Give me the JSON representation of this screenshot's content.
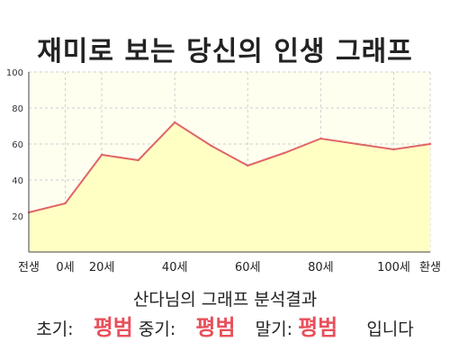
{
  "chart_data": {
    "type": "area",
    "title": "재미로 보는 당신의 인생 그래프",
    "ylim": [
      0,
      100
    ],
    "y_ticks": [
      20,
      40,
      60,
      80,
      100
    ],
    "grid": true,
    "x_tick_labels": [
      "전생",
      "0세",
      "20세",
      "40세",
      "60세",
      "80세",
      "100세",
      "환생"
    ],
    "x": [
      "전생",
      "0세",
      "20세",
      "30세",
      "40세",
      "50세",
      "60세",
      "70세",
      "80세",
      "90세",
      "100세",
      "환생"
    ],
    "values": [
      22,
      27,
      54,
      51,
      72,
      59,
      48,
      55,
      63,
      60,
      57,
      60
    ],
    "colors": {
      "line": "#e06666",
      "fill": "#ffffc4",
      "plot_bg": "#fffff0",
      "grid": "#cfcfcf",
      "axis": "#444444"
    }
  },
  "analysis": {
    "title": "산다님의 그래프 분석결과",
    "early_label": "초기:",
    "early_value": "평범",
    "mid_label": "중기:",
    "mid_value": "평범",
    "late_label": "말기:",
    "late_value": "평범",
    "suffix": "입니다"
  }
}
